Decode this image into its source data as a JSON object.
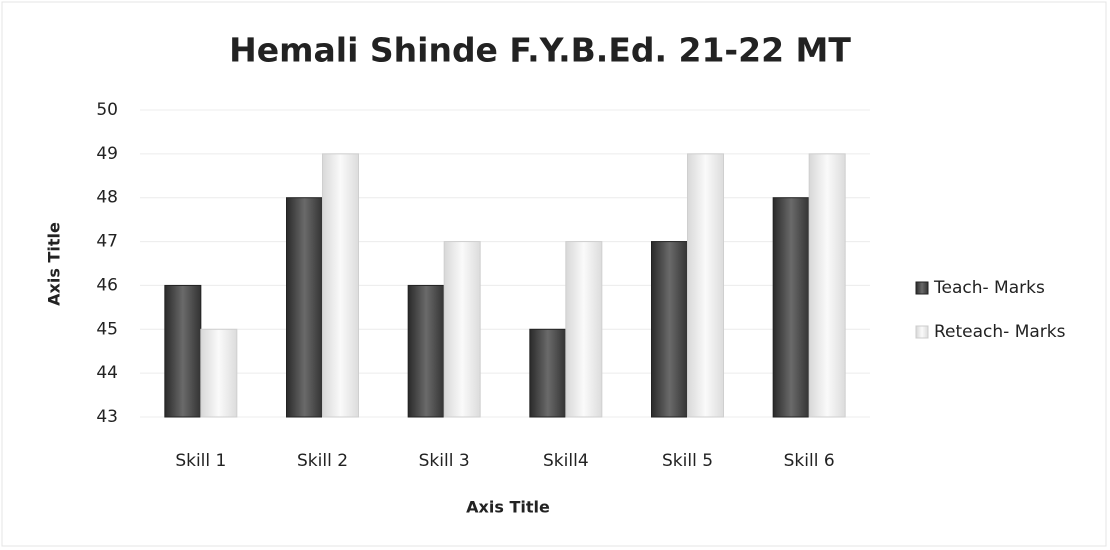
{
  "chart_data": {
    "type": "bar",
    "title": "Hemali Shinde F.Y.B.Ed. 21-22 MT",
    "x_label": "Axis Title",
    "y_label": "Axis Title",
    "categories": [
      "Skill 1",
      "Skill 2",
      "Skill 3",
      "Skill4",
      "Skill 5",
      "Skill 6"
    ],
    "series": [
      {
        "name": "Teach- Marks",
        "color": "#4a4a4a",
        "values": [
          46,
          48,
          46,
          45,
          47,
          48
        ]
      },
      {
        "name": "Reteach- Marks",
        "color": "#ececec",
        "values": [
          45,
          49,
          47,
          47,
          49,
          49
        ]
      }
    ],
    "ylim": [
      43,
      50
    ],
    "yticks": [
      43,
      44,
      45,
      46,
      47,
      48,
      49,
      50
    ],
    "grid": true,
    "legend": "right"
  }
}
